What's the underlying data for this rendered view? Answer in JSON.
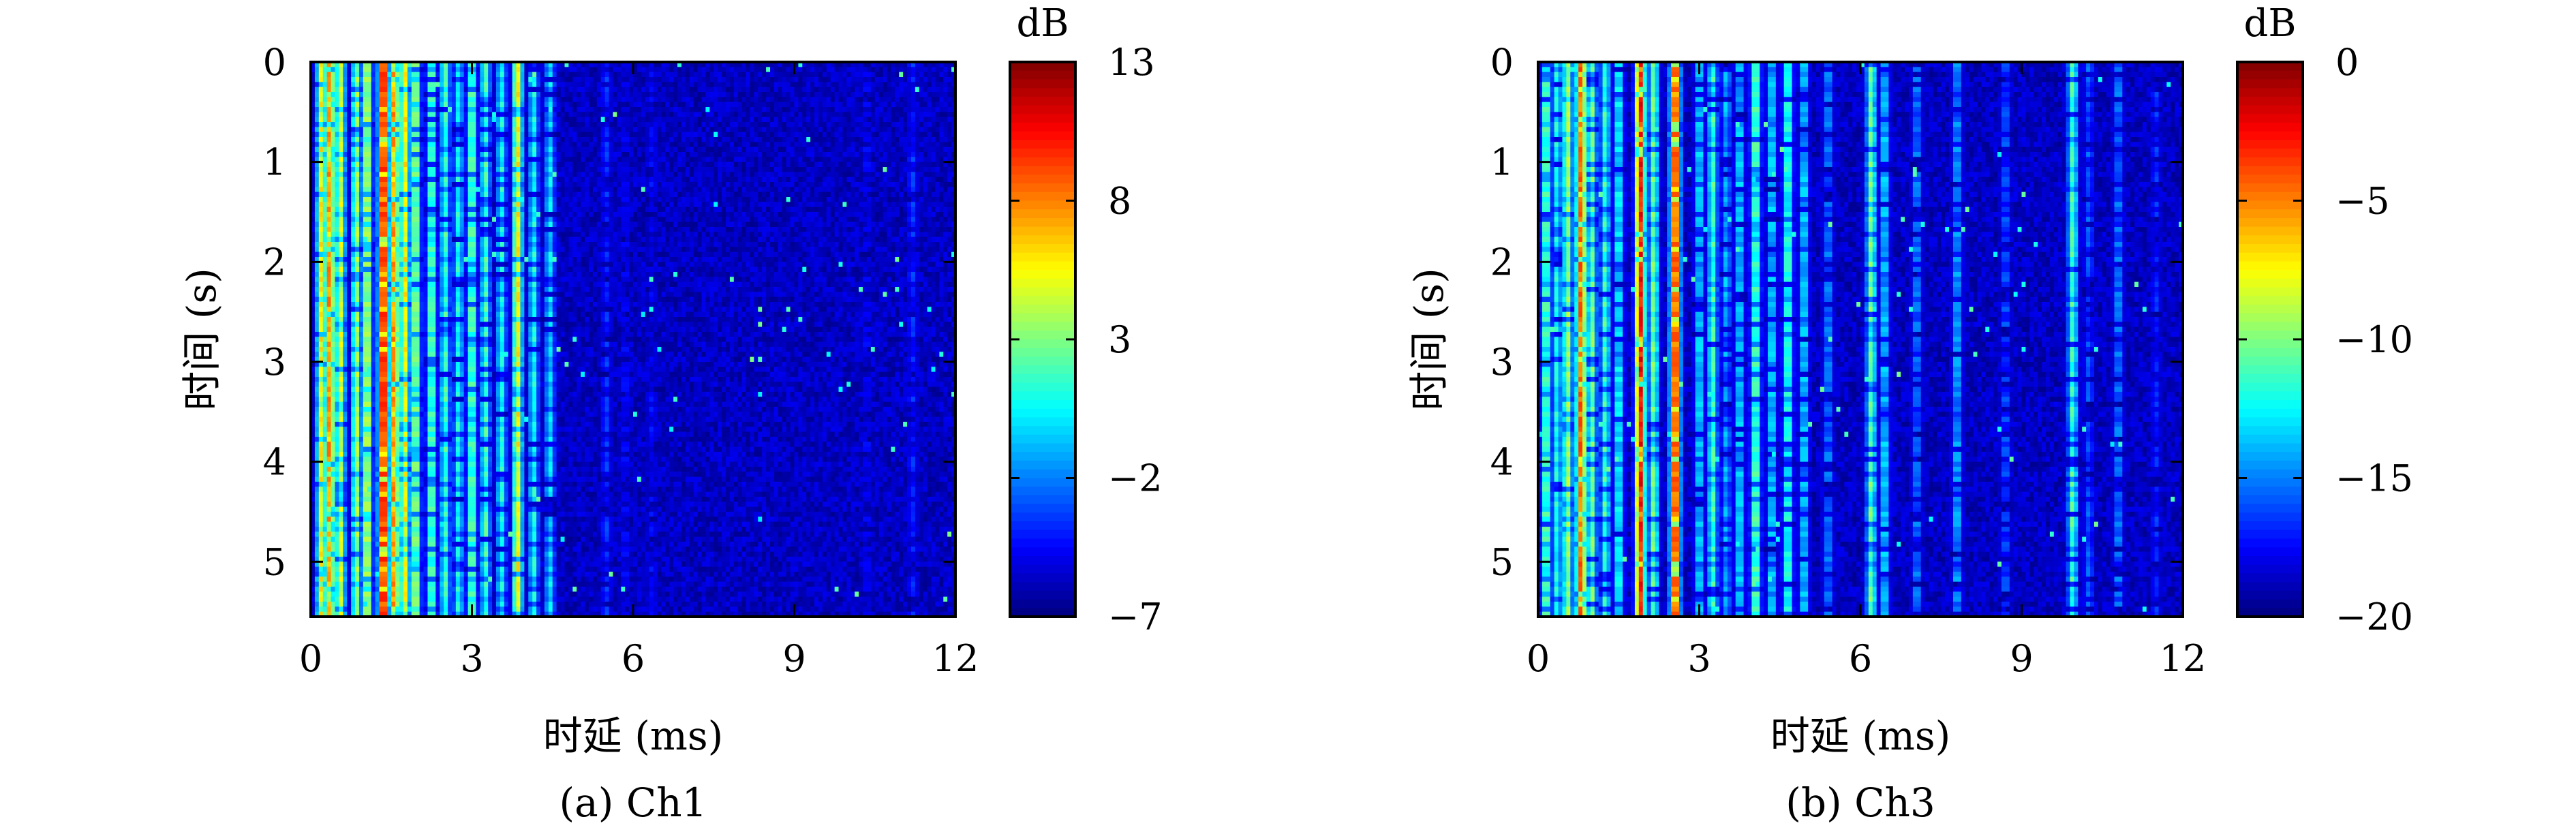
{
  "chart_data": [
    {
      "type": "heatmap",
      "caption": "(a) Ch1",
      "xlabel": "时延 (ms)",
      "ylabel": "时间 (s)",
      "x_ticks": [
        0,
        3,
        6,
        9,
        12
      ],
      "y_ticks": [
        0,
        1,
        2,
        3,
        4,
        5
      ],
      "xlim": [
        0,
        12
      ],
      "ylim": [
        0,
        5.55
      ],
      "y_inverted": true,
      "colormap": "jet",
      "colorbar": {
        "title": "dB",
        "ticks": [
          13,
          8,
          3,
          -2,
          -7
        ],
        "range": [
          -7,
          13
        ]
      },
      "paths_delay_ms": [
        0.2,
        0.35,
        0.55,
        0.85,
        1.05,
        1.35,
        1.55,
        1.75,
        1.95,
        2.25,
        2.5,
        2.75,
        3.0,
        3.25,
        3.55,
        3.85,
        4.15,
        4.45,
        5.5,
        5.85,
        6.35,
        10.35,
        11.2
      ],
      "paths_level_db": [
        7,
        9,
        6,
        5,
        6,
        13,
        9,
        7,
        5,
        4,
        3,
        2,
        4,
        3,
        2,
        7,
        2,
        1,
        -3,
        -4,
        -4,
        -4,
        -3
      ]
    },
    {
      "type": "heatmap",
      "caption": "(b) Ch3",
      "xlabel": "时延 (ms)",
      "ylabel": "时间 (s)",
      "x_ticks": [
        0,
        3,
        6,
        9,
        12
      ],
      "y_ticks": [
        0,
        1,
        2,
        3,
        4,
        5
      ],
      "xlim": [
        0,
        12
      ],
      "ylim": [
        0,
        5.55
      ],
      "y_inverted": true,
      "colormap": "jet",
      "colorbar": {
        "title": "dB",
        "ticks": [
          0,
          -5,
          -10,
          -15,
          -20
        ],
        "range": [
          -20,
          0
        ]
      },
      "paths_delay_ms": [
        0.15,
        0.35,
        0.55,
        0.8,
        1.0,
        1.25,
        1.5,
        1.9,
        2.15,
        2.55,
        3.0,
        3.25,
        3.5,
        3.75,
        4.05,
        4.35,
        4.65,
        4.95,
        5.4,
        6.2,
        6.45,
        7.05,
        7.8,
        8.7,
        9.95,
        10.25,
        10.8,
        11.5
      ],
      "paths_level_db": [
        -9,
        -11,
        -8,
        -3,
        -9,
        -10,
        -11,
        -1,
        -9,
        -1,
        -12,
        -10,
        -13,
        -12,
        -9,
        -12,
        -10,
        -12,
        -14,
        -9,
        -12,
        -14,
        -13,
        -15,
        -10,
        -15,
        -14,
        -16
      ]
    }
  ]
}
